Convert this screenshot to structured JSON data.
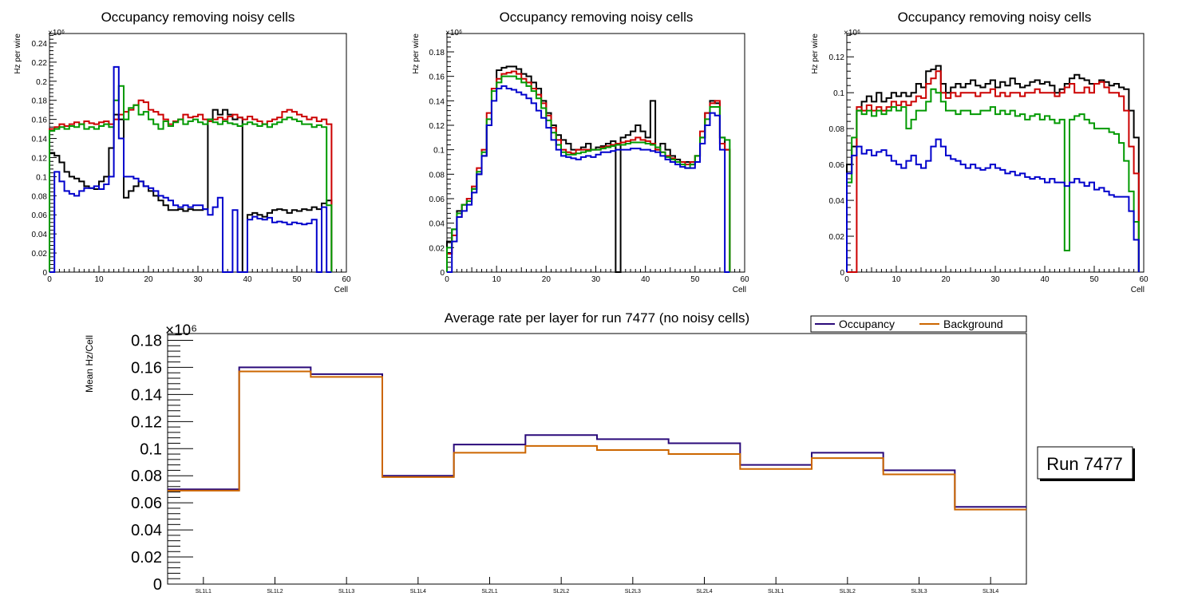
{
  "chart_data": [
    {
      "type": "step-line",
      "title": "Occupancy removing noisy cells",
      "xlabel": "Cell",
      "ylabel": "Hz per wire",
      "exponent_label": "×10⁶",
      "xlim": [
        0,
        60
      ],
      "ylim": [
        0,
        0.25
      ],
      "xticks": [
        "0",
        "10",
        "20",
        "30",
        "40",
        "50",
        "60"
      ],
      "yticks": [
        "0",
        "0.02",
        "0.04",
        "0.06",
        "0.08",
        "0.1",
        "0.12",
        "0.14",
        "0.16",
        "0.18",
        "0.2",
        "0.22",
        "0.24"
      ],
      "series": [
        {
          "name": "black",
          "color": "#000000",
          "values": [
            0.125,
            0.122,
            0.115,
            0.105,
            0.1,
            0.098,
            0.095,
            0.09,
            0.088,
            0.087,
            0.095,
            0.1,
            0.13,
            0.165,
            0.16,
            0.078,
            0.085,
            0.09,
            0.095,
            0.09,
            0.085,
            0.08,
            0.075,
            0.07,
            0.065,
            0.065,
            0.066,
            0.064,
            0.066,
            0.065,
            0.065,
            0.066,
            0.16,
            0.17,
            0.165,
            0.17,
            0.165,
            0.16,
            0.162,
            0,
            0.06,
            0.062,
            0.06,
            0.058,
            0.062,
            0.065,
            0.066,
            0.065,
            0.062,
            0.065,
            0.064,
            0.066,
            0.065,
            0.068,
            0.066,
            0.072,
            0.075
          ]
        },
        {
          "name": "red",
          "color": "#cc0000",
          "values": [
            0.15,
            0.152,
            0.155,
            0.153,
            0.155,
            0.157,
            0.155,
            0.158,
            0.156,
            0.155,
            0.157,
            0.158,
            0.155,
            0.16,
            0.165,
            0.168,
            0.17,
            0.175,
            0.18,
            0.178,
            0.17,
            0.168,
            0.165,
            0.16,
            0.155,
            0.158,
            0.16,
            0.165,
            0.162,
            0.163,
            0.165,
            0.16,
            0.158,
            0.16,
            0.162,
            0.16,
            0.163,
            0.165,
            0.162,
            0.16,
            0.163,
            0.16,
            0.158,
            0.155,
            0.158,
            0.16,
            0.162,
            0.168,
            0.17,
            0.168,
            0.165,
            0.163,
            0.16,
            0.162,
            0.158,
            0.16,
            0.155
          ]
        },
        {
          "name": "green",
          "color": "#009900",
          "values": [
            0.148,
            0.15,
            0.152,
            0.15,
            0.153,
            0.152,
            0.155,
            0.15,
            0.152,
            0.15,
            0.153,
            0.155,
            0.152,
            0.18,
            0.195,
            0.16,
            0.172,
            0.175,
            0.165,
            0.168,
            0.16,
            0.155,
            0.15,
            0.158,
            0.153,
            0.157,
            0.16,
            0.155,
            0.158,
            0.16,
            0.157,
            0.155,
            0.16,
            0.157,
            0.155,
            0.158,
            0.156,
            0.155,
            0.153,
            0.155,
            0.157,
            0.155,
            0.153,
            0.155,
            0.152,
            0.155,
            0.157,
            0.16,
            0.162,
            0.16,
            0.158,
            0.155,
            0.155,
            0.152,
            0.154,
            0.152,
            0.07
          ]
        },
        {
          "name": "blue",
          "color": "#0000cc",
          "values": [
            0,
            0.105,
            0.095,
            0.085,
            0.082,
            0.08,
            0.085,
            0.088,
            0.088,
            0.09,
            0.087,
            0.092,
            0.1,
            0.215,
            0.14,
            0.1,
            0.1,
            0.098,
            0.095,
            0.09,
            0.088,
            0.085,
            0.08,
            0.078,
            0.075,
            0.07,
            0.068,
            0.07,
            0.068,
            0.07,
            0.07,
            0.066,
            0.06,
            0.068,
            0.078,
            0.0,
            0.0,
            0.065,
            0.0,
            0.0,
            0.055,
            0.058,
            0.056,
            0.055,
            0.057,
            0.052,
            0.053,
            0.052,
            0.05,
            0.052,
            0.051,
            0.05,
            0.051,
            0.055,
            0.0,
            0.068,
            0.0
          ]
        }
      ]
    },
    {
      "type": "step-line",
      "title": "Occupancy removing noisy cells",
      "xlabel": "Cell",
      "ylabel": "Hz per wire",
      "exponent_label": "×10⁶",
      "xlim": [
        0,
        60
      ],
      "ylim": [
        0,
        0.195
      ],
      "xticks": [
        "0",
        "10",
        "20",
        "30",
        "40",
        "50",
        "60"
      ],
      "yticks": [
        "0",
        "0.02",
        "0.04",
        "0.06",
        "0.08",
        "0.1",
        "0.12",
        "0.14",
        "0.16",
        "0.18"
      ],
      "series": [
        {
          "name": "black",
          "color": "#000000",
          "values": [
            0.025,
            0.035,
            0.05,
            0.055,
            0.06,
            0.068,
            0.08,
            0.095,
            0.12,
            0.15,
            0.165,
            0.167,
            0.168,
            0.168,
            0.166,
            0.162,
            0.16,
            0.155,
            0.15,
            0.14,
            0.13,
            0.12,
            0.112,
            0.108,
            0.105,
            0.1,
            0.1,
            0.102,
            0.105,
            0.1,
            0.102,
            0.103,
            0.105,
            0.107,
            0.0,
            0.11,
            0.112,
            0.115,
            0.12,
            0.115,
            0.11,
            0.14,
            0.1,
            0.105,
            0.1,
            0.095,
            0.092,
            0.09,
            0.09,
            0.088,
            0.095,
            0.11,
            0.13,
            0.14,
            0.138,
            0.11,
            0.1
          ]
        },
        {
          "name": "red",
          "color": "#cc0000",
          "values": [
            0.015,
            0.03,
            0.045,
            0.055,
            0.06,
            0.07,
            0.085,
            0.1,
            0.13,
            0.15,
            0.158,
            0.162,
            0.163,
            0.164,
            0.162,
            0.158,
            0.155,
            0.15,
            0.145,
            0.138,
            0.128,
            0.118,
            0.108,
            0.1,
            0.098,
            0.097,
            0.1,
            0.1,
            0.1,
            0.1,
            0.1,
            0.102,
            0.103,
            0.104,
            0.105,
            0.106,
            0.107,
            0.108,
            0.11,
            0.108,
            0.107,
            0.105,
            0.1,
            0.098,
            0.095,
            0.093,
            0.09,
            0.09,
            0.088,
            0.09,
            0.095,
            0.115,
            0.13,
            0.138,
            0.14,
            0.105,
            0.1
          ]
        },
        {
          "name": "green",
          "color": "#009900",
          "values": [
            0.02,
            0.035,
            0.048,
            0.055,
            0.058,
            0.068,
            0.082,
            0.098,
            0.125,
            0.148,
            0.155,
            0.16,
            0.16,
            0.16,
            0.158,
            0.155,
            0.152,
            0.148,
            0.142,
            0.134,
            0.124,
            0.114,
            0.104,
            0.098,
            0.096,
            0.096,
            0.097,
            0.098,
            0.099,
            0.1,
            0.1,
            0.101,
            0.102,
            0.103,
            0.104,
            0.104,
            0.105,
            0.106,
            0.106,
            0.106,
            0.105,
            0.104,
            0.102,
            0.098,
            0.094,
            0.092,
            0.09,
            0.088,
            0.085,
            0.088,
            0.095,
            0.11,
            0.125,
            0.135,
            0.135,
            0.11,
            0.108
          ]
        },
        {
          "name": "blue",
          "color": "#0000cc",
          "values": [
            0.0,
            0.025,
            0.045,
            0.05,
            0.055,
            0.065,
            0.08,
            0.095,
            0.12,
            0.14,
            0.15,
            0.152,
            0.15,
            0.149,
            0.147,
            0.145,
            0.142,
            0.138,
            0.132,
            0.126,
            0.118,
            0.108,
            0.1,
            0.095,
            0.094,
            0.093,
            0.092,
            0.094,
            0.095,
            0.094,
            0.096,
            0.098,
            0.098,
            0.099,
            0.1,
            0.1,
            0.1,
            0.101,
            0.101,
            0.1,
            0.1,
            0.099,
            0.098,
            0.095,
            0.092,
            0.09,
            0.088,
            0.086,
            0.085,
            0.085,
            0.09,
            0.105,
            0.12,
            0.13,
            0.128,
            0.1,
            0.0
          ]
        }
      ]
    },
    {
      "type": "step-line",
      "title": "Occupancy removing noisy cells",
      "xlabel": "Cell",
      "ylabel": "Hz per wire",
      "exponent_label": "×10⁶",
      "xlim": [
        0,
        60
      ],
      "ylim": [
        0,
        0.133
      ],
      "xticks": [
        "0",
        "10",
        "20",
        "30",
        "40",
        "50",
        "60"
      ],
      "yticks": [
        "0",
        "0.02",
        "0.04",
        "0.06",
        "0.08",
        "0.1",
        "0.12"
      ],
      "series": [
        {
          "name": "black",
          "color": "#000000",
          "values": [
            0.06,
            0.07,
            0.09,
            0.095,
            0.098,
            0.095,
            0.1,
            0.095,
            0.097,
            0.1,
            0.098,
            0.1,
            0.098,
            0.1,
            0.105,
            0.103,
            0.112,
            0.113,
            0.115,
            0.105,
            0.1,
            0.103,
            0.105,
            0.103,
            0.105,
            0.107,
            0.104,
            0.103,
            0.105,
            0.107,
            0.103,
            0.106,
            0.104,
            0.108,
            0.105,
            0.103,
            0.104,
            0.106,
            0.107,
            0.105,
            0.106,
            0.104,
            0.1,
            0.102,
            0.105,
            0.108,
            0.11,
            0.108,
            0.107,
            0.105,
            0.105,
            0.107,
            0.106,
            0.104,
            0.105,
            0.103,
            0.102,
            0.09,
            0.075
          ]
        },
        {
          "name": "red",
          "color": "#cc0000",
          "values": [
            0.0,
            0.0,
            0.092,
            0.09,
            0.093,
            0.09,
            0.092,
            0.09,
            0.092,
            0.095,
            0.093,
            0.095,
            0.093,
            0.095,
            0.098,
            0.097,
            0.105,
            0.108,
            0.112,
            0.1,
            0.097,
            0.1,
            0.098,
            0.1,
            0.1,
            0.1,
            0.098,
            0.1,
            0.1,
            0.102,
            0.098,
            0.1,
            0.098,
            0.1,
            0.1,
            0.098,
            0.1,
            0.1,
            0.102,
            0.1,
            0.1,
            0.1,
            0.098,
            0.1,
            0.103,
            0.105,
            0.1,
            0.1,
            0.103,
            0.1,
            0.105,
            0.106,
            0.103,
            0.1,
            0.1,
            0.098,
            0.09,
            0.07,
            0.055
          ]
        },
        {
          "name": "green",
          "color": "#009900",
          "values": [
            0.05,
            0.075,
            0.09,
            0.088,
            0.09,
            0.087,
            0.09,
            0.088,
            0.09,
            0.092,
            0.09,
            0.092,
            0.08,
            0.085,
            0.09,
            0.09,
            0.095,
            0.102,
            0.1,
            0.095,
            0.09,
            0.09,
            0.088,
            0.09,
            0.09,
            0.088,
            0.088,
            0.09,
            0.09,
            0.092,
            0.088,
            0.09,
            0.088,
            0.09,
            0.087,
            0.088,
            0.085,
            0.087,
            0.088,
            0.085,
            0.087,
            0.085,
            0.083,
            0.085,
            0.012,
            0.085,
            0.087,
            0.088,
            0.085,
            0.083,
            0.08,
            0.08,
            0.08,
            0.078,
            0.077,
            0.072,
            0.062,
            0.045,
            0.028
          ]
        },
        {
          "name": "blue",
          "color": "#0000cc",
          "values": [
            0.055,
            0.065,
            0.07,
            0.066,
            0.068,
            0.065,
            0.067,
            0.068,
            0.065,
            0.062,
            0.06,
            0.058,
            0.062,
            0.065,
            0.06,
            0.058,
            0.062,
            0.07,
            0.074,
            0.07,
            0.065,
            0.063,
            0.062,
            0.06,
            0.058,
            0.06,
            0.058,
            0.057,
            0.058,
            0.06,
            0.058,
            0.057,
            0.055,
            0.056,
            0.054,
            0.055,
            0.053,
            0.052,
            0.053,
            0.052,
            0.05,
            0.052,
            0.05,
            0.05,
            0.048,
            0.05,
            0.052,
            0.05,
            0.048,
            0.05,
            0.046,
            0.047,
            0.045,
            0.043,
            0.042,
            0.042,
            0.042,
            0.034,
            0.018
          ]
        }
      ]
    },
    {
      "type": "step-line",
      "title": "Average rate per layer for run 7477 (no noisy cells)",
      "xlabel": "",
      "ylabel": "Mean Hz/Cell",
      "exponent_label": "×10⁶",
      "categories": [
        "SL1L1",
        "SL1L2",
        "SL1L3",
        "SL1L4",
        "SL2L1",
        "SL2L2",
        "SL2L3",
        "SL2L4",
        "SL3L1",
        "SL3L2",
        "SL3L3",
        "SL3L4"
      ],
      "ylim": [
        0,
        0.185
      ],
      "yticks": [
        "0",
        "0.02",
        "0.04",
        "0.06",
        "0.08",
        "0.1",
        "0.12",
        "0.14",
        "0.16",
        "0.18"
      ],
      "legend": [
        "Occupancy",
        "Background"
      ],
      "legend_position": "top-right",
      "series": [
        {
          "name": "Occupancy",
          "color": "#2a0a7a",
          "values": [
            0.07,
            0.16,
            0.155,
            0.08,
            0.103,
            0.11,
            0.107,
            0.104,
            0.088,
            0.097,
            0.084,
            0.057
          ]
        },
        {
          "name": "Background",
          "color": "#cc6600",
          "values": [
            0.069,
            0.157,
            0.153,
            0.079,
            0.097,
            0.102,
            0.099,
            0.096,
            0.085,
            0.093,
            0.081,
            0.055
          ]
        }
      ]
    }
  ],
  "run_label": "Run 7477"
}
